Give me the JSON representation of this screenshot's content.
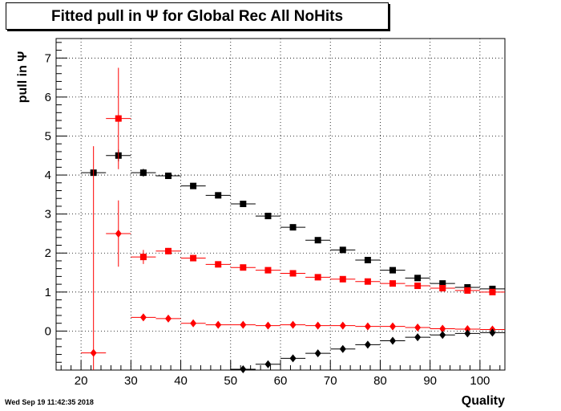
{
  "chart_data": {
    "type": "scatter",
    "title": "Fitted pull in  Ψ  for Global Rec All NoHits",
    "xlabel": "Quality",
    "ylabel": "pull in  Ψ",
    "xlim": [
      15,
      105
    ],
    "ylim": [
      -1,
      7.5
    ],
    "xticks": [
      20,
      30,
      40,
      50,
      60,
      70,
      80,
      90,
      100
    ],
    "yticks": [
      0,
      1,
      2,
      3,
      4,
      5,
      6,
      7
    ],
    "grid": true,
    "legend": "none",
    "series": [
      {
        "color": "#000000",
        "marker": "square",
        "x": [
          22.5,
          27.5,
          32.5,
          37.5,
          42.5,
          47.5,
          52.5,
          57.5,
          62.5,
          67.5,
          72.5,
          77.5,
          82.5,
          87.5,
          92.5,
          97.5,
          102.5
        ],
        "y": [
          4.06,
          4.5,
          4.06,
          3.98,
          3.72,
          3.48,
          3.26,
          2.95,
          2.66,
          2.33,
          2.08,
          1.82,
          1.56,
          1.36,
          1.22,
          1.12,
          1.08
        ],
        "yerr": [
          0.0,
          0.15,
          0.1,
          0.05,
          0.03,
          0.03,
          0.03,
          0.02,
          0.02,
          0.02,
          0.02,
          0.02,
          0.02,
          0.02,
          0.01,
          0.01,
          0.01
        ]
      },
      {
        "color": "#ff0000",
        "marker": "square",
        "x": [
          27.5,
          32.5,
          37.5,
          42.5,
          47.5,
          52.5,
          57.5,
          62.5,
          67.5,
          72.5,
          77.5,
          82.5,
          87.5,
          92.5,
          97.5,
          102.5
        ],
        "y": [
          5.45,
          1.9,
          2.05,
          1.87,
          1.71,
          1.63,
          1.56,
          1.48,
          1.38,
          1.33,
          1.27,
          1.22,
          1.16,
          1.1,
          1.04,
          1.0
        ],
        "yerr": [
          1.3,
          0.18,
          0.08,
          0.05,
          0.04,
          0.03,
          0.03,
          0.03,
          0.02,
          0.02,
          0.02,
          0.02,
          0.02,
          0.02,
          0.01,
          0.01
        ]
      },
      {
        "color": "#ff0000",
        "marker": "diamond",
        "x": [
          22.5,
          27.5,
          32.5,
          37.5,
          42.5,
          47.5,
          52.5,
          57.5,
          62.5,
          67.5,
          72.5,
          77.5,
          82.5,
          87.5,
          92.5,
          97.5,
          102.5
        ],
        "y": [
          -0.56,
          2.5,
          0.35,
          0.32,
          0.2,
          0.16,
          0.16,
          0.14,
          0.16,
          0.14,
          0.14,
          0.12,
          0.12,
          0.09,
          0.06,
          0.05,
          0.04
        ],
        "yerr": [
          5.3,
          0.85,
          0.07,
          0.04,
          0.03,
          0.02,
          0.02,
          0.02,
          0.02,
          0.02,
          0.01,
          0.01,
          0.01,
          0.01,
          0.01,
          0.01,
          0.01
        ]
      },
      {
        "color": "#000000",
        "marker": "diamond",
        "x": [
          52.5,
          57.5,
          62.5,
          67.5,
          72.5,
          77.5,
          82.5,
          87.5,
          92.5,
          97.5,
          102.5
        ],
        "y": [
          -0.98,
          -0.85,
          -0.7,
          -0.57,
          -0.46,
          -0.35,
          -0.25,
          -0.16,
          -0.1,
          -0.06,
          -0.04
        ],
        "yerr": [
          0.02,
          0.02,
          0.02,
          0.02,
          0.01,
          0.01,
          0.01,
          0.01,
          0.01,
          0.01,
          0.01
        ]
      }
    ]
  },
  "footer": {
    "timestamp": "Wed Sep 19 11:42:35 2018"
  }
}
